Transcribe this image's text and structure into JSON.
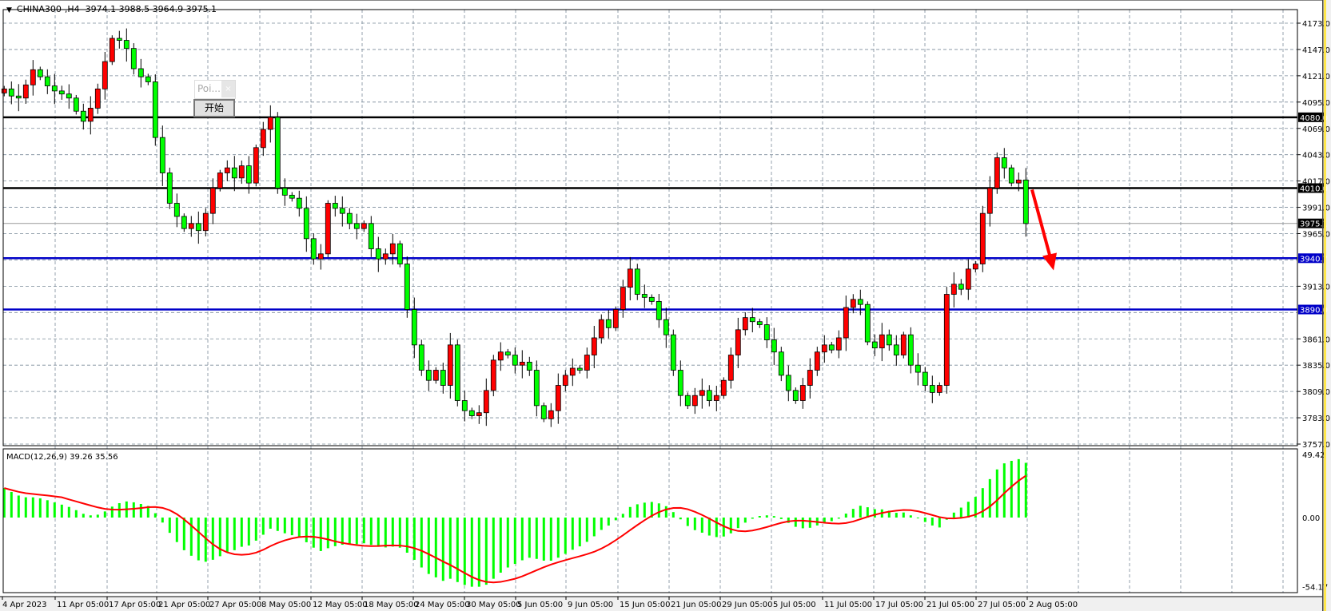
{
  "header": {
    "symbol": "CHINA300-,H4",
    "ohlc": "3974.1 3988.5 3964.9 3975.1",
    "dropdown_icon": "triangle-down"
  },
  "popup": {
    "title": "Poi...",
    "close": "×",
    "button": "开始"
  },
  "colors": {
    "bull": "#ff0000",
    "bear": "#00ff00",
    "candle_outline": "#000000",
    "grid": "#7a8a99",
    "support": "#0000c8",
    "resistance": "#000000",
    "macd_hist": "#00ff00",
    "macd_signal": "#ff0000",
    "arrow": "#ff0000"
  },
  "chart_data": {
    "type": "candlestick",
    "symbol": "CHINA300-",
    "timeframe": "H4",
    "first_open": 4104,
    "closes": [
      4108,
      4101,
      4099,
      4112,
      4127,
      4120,
      4111,
      4106,
      4103,
      4099,
      4086,
      4076,
      4089,
      4108,
      4135,
      4158,
      4156,
      4148,
      4128,
      4120,
      4115,
      4060,
      4025,
      3995,
      3982,
      3970,
      3975,
      3968,
      3985,
      4010,
      4025,
      4030,
      4020,
      4032,
      4015,
      4050,
      4068,
      4080,
      4010,
      4003,
      4000,
      3990,
      3960,
      3940,
      3945,
      3995,
      3990,
      3985,
      3975,
      3970,
      3975,
      3950,
      3940,
      3945,
      3955,
      3935,
      3890,
      3855,
      3830,
      3820,
      3830,
      3815,
      3855,
      3800,
      3790,
      3785,
      3788,
      3810,
      3840,
      3848,
      3845,
      3835,
      3838,
      3830,
      3795,
      3782,
      3790,
      3815,
      3825,
      3832,
      3830,
      3845,
      3862,
      3880,
      3872,
      3890,
      3912,
      3930,
      3905,
      3902,
      3898,
      3880,
      3865,
      3830,
      3805,
      3795,
      3805,
      3810,
      3800,
      3805,
      3820,
      3845,
      3870,
      3882,
      3878,
      3875,
      3860,
      3848,
      3825,
      3810,
      3800,
      3815,
      3830,
      3848,
      3855,
      3850,
      3862,
      3892,
      3900,
      3895,
      3858,
      3852,
      3865,
      3855,
      3845,
      3865,
      3835,
      3828,
      3815,
      3808,
      3815,
      3905,
      3915,
      3910,
      3930,
      3935,
      3985,
      4010,
      4040,
      4030,
      4015,
      4018,
      3975
    ],
    "price_axis": {
      "ticks": [
        "4173.0",
        "4147.0",
        "4121.0",
        "4095.0",
        "4069.0",
        "4043.0",
        "4017.0",
        "3991.0",
        "3965.0",
        "3913.0",
        "3861.0",
        "3835.0",
        "3809.0",
        "3783.0",
        "3757.0"
      ],
      "range": [
        3757,
        4173
      ]
    },
    "horizontal_lines": [
      {
        "price": 4080.0,
        "label": "4080.0",
        "color": "#000000"
      },
      {
        "price": 4010.0,
        "label": "4010.0",
        "color": "#000000"
      },
      {
        "price": 3940.7,
        "label": "3940.7",
        "color": "#0000c8"
      },
      {
        "price": 3890.0,
        "label": "3890.0",
        "color": "#0000c8"
      }
    ],
    "bid_line": {
      "price": 3975.1,
      "label": "3975.1"
    },
    "time_axis": [
      "4 Apr 2023",
      "11 Apr 05:00",
      "17 Apr 05:00",
      "21 Apr 05:00",
      "27 Apr 05:00",
      "8 May 05:00",
      "12 May 05:00",
      "18 May 05:00",
      "24 May 05:00",
      "30 May 05:00",
      "5 Jun 05:00",
      "9 Jun 05:00",
      "15 Jun 05:00",
      "21 Jun 05:00",
      "29 Jun 05:00",
      "5 Jul 05:00",
      "11 Jul 05:00",
      "17 Jul 05:00",
      "21 Jul 05:00",
      "27 Jul 05:00",
      "2 Aug 05:00"
    ],
    "annotation": {
      "type": "arrow",
      "direction": "down",
      "from_price": 4010,
      "to_price": 3935
    },
    "macd": {
      "label": "MACD(12,26,9) 39.26 35.56",
      "fast": 12,
      "slow": 26,
      "signal": 9,
      "ticks": [
        "49.42",
        "0.00",
        "-54.17"
      ],
      "range": [
        -54.17,
        49.42
      ],
      "last_main": 39.26,
      "last_signal": 35.56
    }
  }
}
